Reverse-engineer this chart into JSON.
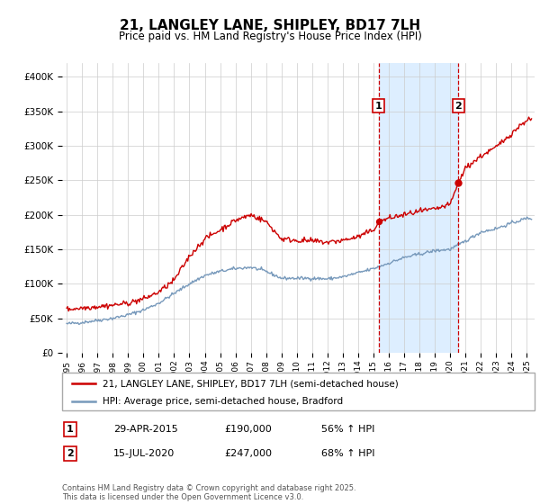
{
  "title": "21, LANGLEY LANE, SHIPLEY, BD17 7LH",
  "subtitle": "Price paid vs. HM Land Registry's House Price Index (HPI)",
  "legend_line1": "21, LANGLEY LANE, SHIPLEY, BD17 7LH (semi-detached house)",
  "legend_line2": "HPI: Average price, semi-detached house, Bradford",
  "transaction1_date": "29-APR-2015",
  "transaction1_price": 190000,
  "transaction1_label": "56% ↑ HPI",
  "transaction2_date": "15-JUL-2020",
  "transaction2_price": 247000,
  "transaction2_label": "68% ↑ HPI",
  "footer": "Contains HM Land Registry data © Crown copyright and database right 2025.\nThis data is licensed under the Open Government Licence v3.0.",
  "red_color": "#cc0000",
  "blue_color": "#7799bb",
  "shade_color": "#ddeeff",
  "ylim": [
    0,
    420000
  ],
  "yticks": [
    0,
    50000,
    100000,
    150000,
    200000,
    250000,
    300000,
    350000,
    400000
  ],
  "xmin": 1994.7,
  "xmax": 2025.5,
  "marker1_x": 2015.33,
  "marker2_x": 2020.54
}
